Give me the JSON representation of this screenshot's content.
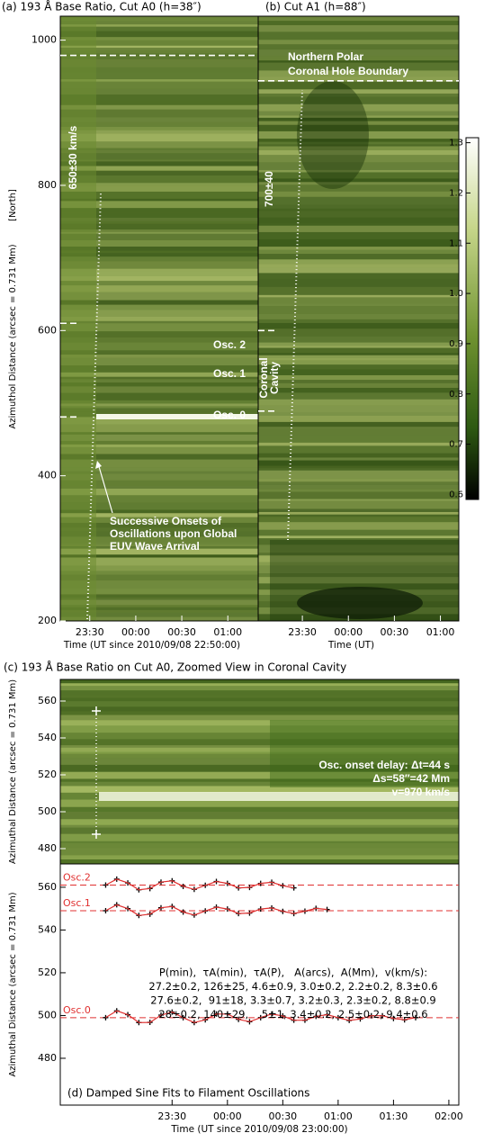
{
  "chart_data": [
    {
      "type": "heatmap",
      "title": "(a) 193 Å Base Ratio, Cut A0 (h=38″)",
      "ylabel": "Azimuthol Distance (arcsec = 0.731 Mm)",
      "ylabel_note": "[North]",
      "xlabel": "Time (UT since 2010/09/08 22:50:00)",
      "xlim": [
        23.18,
        25.33
      ],
      "xticks": [
        {
          "value": 23.5,
          "label": "23:30"
        },
        {
          "value": 24,
          "label": "00:00"
        },
        {
          "value": 24.5,
          "label": "00:30"
        },
        {
          "value": 25,
          "label": "01:00"
        }
      ],
      "ylim": [
        200,
        1033
      ],
      "yticks": [
        200,
        400,
        600,
        800,
        1000
      ],
      "hlines": [
        979,
        610,
        481
      ],
      "annotations": [
        "650±30 km/s",
        "Osc. 2",
        "Osc. 1",
        "Osc. 0",
        "Successive Onsets of",
        "Oscillations upon Global",
        "EUV Wave Arrival"
      ]
    },
    {
      "type": "heatmap",
      "title": "(b) Cut A1 (h=88″)",
      "xlabel": "Time (UT)",
      "xlim": [
        23.02,
        25.2
      ],
      "xticks": [
        {
          "value": 23.5,
          "label": "23:30"
        },
        {
          "value": 24,
          "label": "00:00"
        },
        {
          "value": 24.5,
          "label": "00:30"
        },
        {
          "value": 25,
          "label": "01:00"
        }
      ],
      "ylim": [
        200,
        1033
      ],
      "hlines": [
        944,
        600,
        489
      ],
      "annotations": [
        "Northern Polar",
        "Coronal Hole Boundary",
        "700±40",
        "Coronal",
        "Cavity"
      ],
      "colorbar": {
        "lim": [
          0.59,
          1.31
        ],
        "ticks": [
          0.6,
          0.7,
          0.8,
          0.9,
          {
            "value": 1,
            "label": "1.0"
          },
          1.1,
          1.2,
          1.3
        ]
      }
    },
    {
      "type": "heatmap",
      "title": "(c) 193 Å Base Ratio on Cut A0, Zoomed View in Coronal Cavity",
      "ylabel": "Azimuthal Distance (arcsec = 0.731 Mm)",
      "xlim": [
        22.49,
        26.09
      ],
      "ylim": [
        471.7,
        571.7
      ],
      "yticks": [
        480,
        500,
        520,
        540,
        560
      ],
      "annotations": [
        "Osc. onset delay: Δt=44 s",
        "Δs=58″=42 Mm",
        "v=970 km/s"
      ]
    },
    {
      "type": "line",
      "title": "(d) Damped Sine Fits to Filament Oscillations",
      "ylabel": "Azimuthal Distance (arcsec = 0.731 Mm)",
      "xlabel": "Time (UT since 2010/09/08 23:00:00)",
      "xlim": [
        22.49,
        26.09
      ],
      "xticks": [
        {
          "value": 23.5,
          "label": "23:30"
        },
        {
          "value": 24,
          "label": "00:00"
        },
        {
          "value": 24.5,
          "label": "00:30"
        },
        {
          "value": 25,
          "label": "01:00"
        },
        {
          "value": 25.5,
          "label": "01:30"
        },
        {
          "value": 26,
          "label": "02:00"
        }
      ],
      "ylim": [
        458.1,
        570.9
      ],
      "yticks": [
        480,
        500,
        520,
        540,
        560
      ],
      "hlines": [
        561,
        549,
        499
      ],
      "hline_color": "#e03030",
      "fit_color": "#e03030",
      "series": [
        {
          "name": "Osc.2",
          "color": "#000000",
          "x": [
            22.9,
            23.0,
            23.1,
            23.2,
            23.3,
            23.4,
            23.5,
            23.6,
            23.7,
            23.8,
            23.9,
            24.0,
            24.1,
            24.2,
            24.3,
            24.4,
            24.5,
            24.6
          ],
          "values": [
            561,
            563.8,
            562.0,
            558.8,
            559.4,
            562.4,
            563.0,
            560.4,
            559.0,
            560.9,
            562.7,
            561.8,
            559.7,
            559.9,
            561.8,
            562.3,
            560.7,
            559.7
          ]
        },
        {
          "name": "Osc.1",
          "color": "#000000",
          "x": [
            22.9,
            23.0,
            23.1,
            23.2,
            23.3,
            23.4,
            23.5,
            23.6,
            23.7,
            23.8,
            23.9,
            24.0,
            24.1,
            24.2,
            24.3,
            24.4,
            24.5,
            24.6,
            24.7,
            24.8,
            24.9
          ],
          "values": [
            549,
            551.8,
            550.0,
            546.8,
            547.4,
            550.4,
            551.0,
            548.4,
            547.0,
            548.9,
            550.7,
            549.8,
            547.7,
            547.9,
            549.8,
            550.3,
            548.7,
            547.7,
            548.8,
            550.1,
            549.6
          ]
        },
        {
          "name": "Osc.0",
          "color": "#000000",
          "x": [
            22.9,
            23.0,
            23.1,
            23.2,
            23.3,
            23.4,
            23.5,
            23.6,
            23.7,
            23.8,
            23.9,
            24.0,
            24.1,
            24.2,
            24.3,
            24.4,
            24.5,
            24.6,
            24.7,
            24.8,
            24.9,
            25.0,
            25.1,
            25.2,
            25.3,
            25.4,
            25.5,
            25.6,
            25.7
          ],
          "values": [
            499,
            502.2,
            500.4,
            496.7,
            496.8,
            500.2,
            501.6,
            499.0,
            496.7,
            498.0,
            500.7,
            500.7,
            498.2,
            497.1,
            499.0,
            500.7,
            499.8,
            497.8,
            497.8,
            499.6,
            500.4,
            499.0,
            497.7,
            498.4,
            499.9,
            499.9,
            498.6,
            498.0,
            499.0
          ]
        }
      ],
      "table": [
        "P(min),  τA(min),  τA(P),   A(arcs),  A(Mm),  v(km/s):",
        "27.2±0.2, 126±25, 4.6±0.9, 3.0±0.2, 2.2±0.2, 8.3±0.6",
        "27.6±0.2,  91±18, 3.3±0.7, 3.2±0.3, 2.3±0.2, 8.8±0.9",
        "28±0.2, 140±29,    5±1, 3.4±0.2, 2.5±0.2, 9.4±0.6"
      ]
    }
  ]
}
